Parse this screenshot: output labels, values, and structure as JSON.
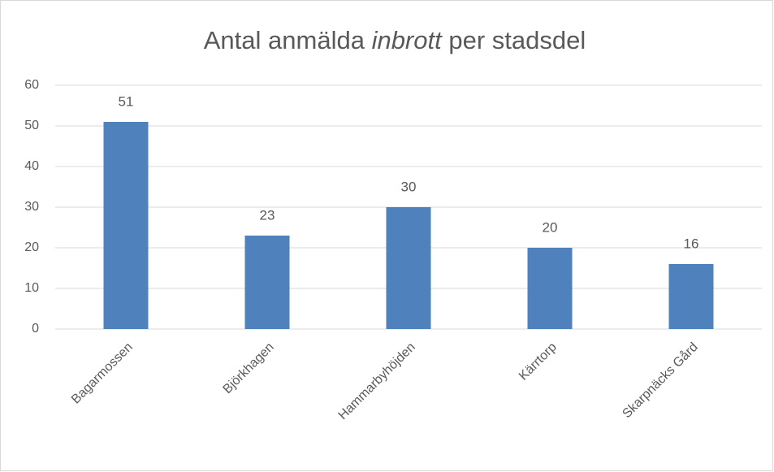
{
  "chart_data": {
    "type": "bar",
    "title": [
      "Antal anmälda",
      "inbrott",
      "per stadsdel"
    ],
    "categories": [
      "Bagarmossen",
      "Björkhagen",
      "Hammarbyhöjden",
      "Kärrtorp",
      "Skarpnäcks Gård"
    ],
    "values": [
      51,
      23,
      30,
      20,
      16
    ],
    "color": "#4f81bd",
    "ylim": [
      0,
      60
    ],
    "yticks": [
      0,
      10,
      20,
      30,
      40,
      50,
      60
    ],
    "grid": true
  }
}
